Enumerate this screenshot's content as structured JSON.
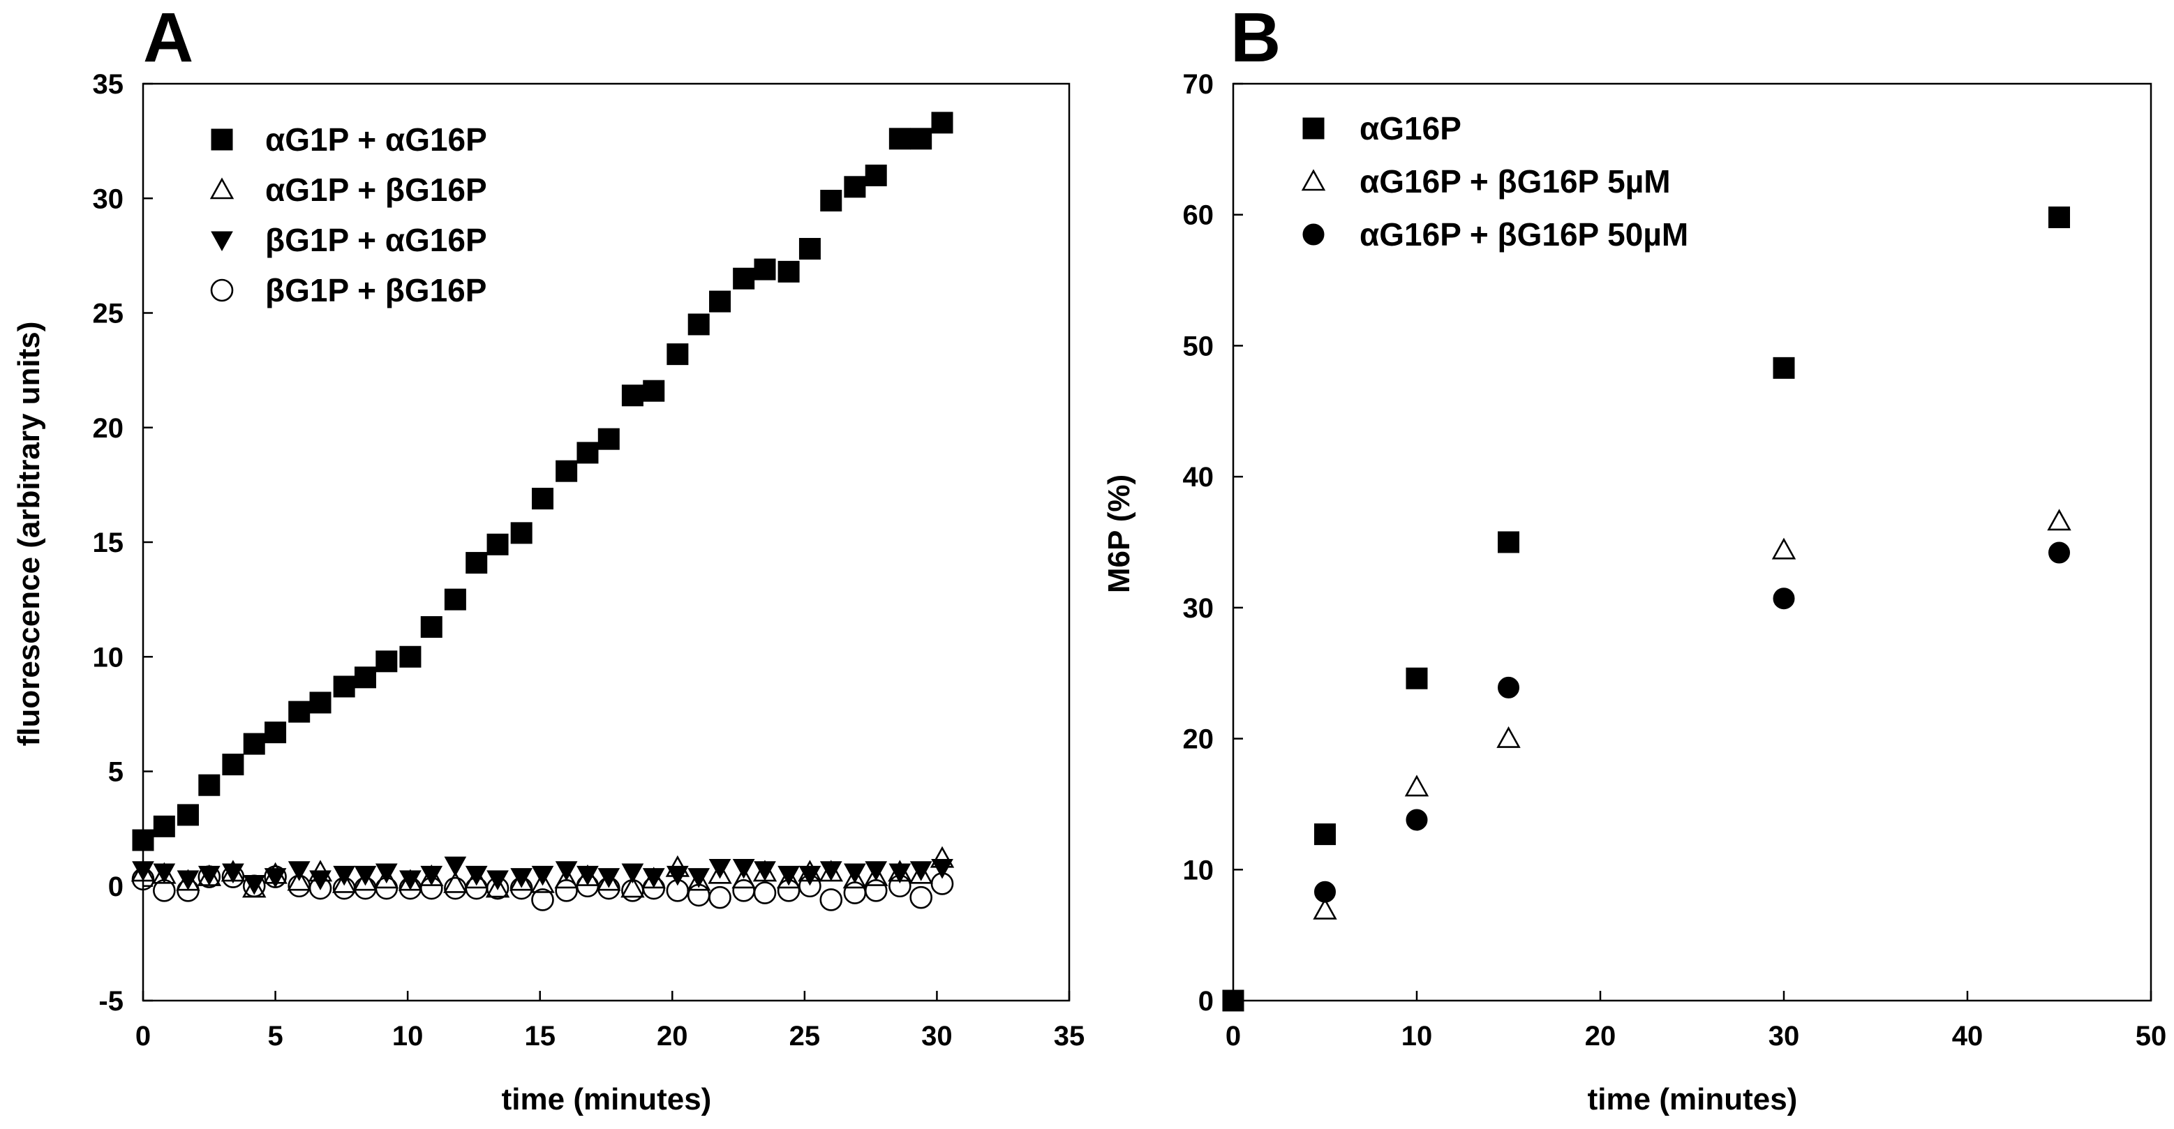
{
  "colors": {
    "ink": "#000000",
    "background": "#ffffff"
  },
  "chart_data": [
    {
      "panel": "A",
      "type": "scatter",
      "xlabel": "time (minutes)",
      "ylabel": "fluorescence (arbitrary units)",
      "xlim": [
        0,
        35
      ],
      "ylim": [
        -5,
        35
      ],
      "xticks": [
        0,
        5,
        10,
        15,
        20,
        25,
        30,
        35
      ],
      "yticks": [
        -5,
        0,
        5,
        10,
        15,
        20,
        25,
        30,
        35
      ],
      "grid": false,
      "legend_position": "top-left",
      "series": [
        {
          "name": "αG1P + αG16P",
          "marker": "square-filled",
          "x": [
            0,
            0.8,
            1.7,
            2.5,
            3.4,
            4.2,
            5.0,
            5.9,
            6.7,
            7.6,
            8.4,
            9.2,
            10.1,
            10.9,
            11.8,
            12.6,
            13.4,
            14.3,
            15.1,
            16.0,
            16.8,
            17.6,
            18.5,
            19.3,
            20.2,
            21.0,
            21.8,
            22.7,
            23.5,
            24.4,
            25.2,
            26.0,
            26.9,
            27.7,
            28.6,
            29.4,
            30.2
          ],
          "y": [
            2.0,
            2.6,
            3.1,
            4.4,
            5.3,
            6.2,
            6.7,
            7.6,
            8.0,
            8.7,
            9.1,
            9.8,
            10.0,
            11.3,
            12.5,
            14.1,
            14.9,
            15.4,
            16.9,
            18.1,
            18.9,
            19.5,
            21.4,
            21.6,
            23.2,
            24.5,
            25.5,
            26.5,
            26.9,
            26.8,
            27.8,
            29.9,
            30.5,
            31.0,
            32.6,
            32.6,
            33.3
          ]
        },
        {
          "name": "αG1P + βG16P",
          "marker": "triangle-up-open",
          "x": [
            0,
            0.8,
            1.7,
            2.5,
            3.4,
            4.2,
            5.0,
            5.9,
            6.7,
            7.6,
            8.4,
            9.2,
            10.1,
            10.9,
            11.8,
            12.6,
            13.4,
            14.3,
            15.1,
            16.0,
            16.8,
            17.6,
            18.5,
            19.3,
            20.2,
            21.0,
            21.8,
            22.7,
            23.5,
            24.4,
            25.2,
            26.0,
            26.9,
            27.7,
            28.6,
            29.4,
            30.2
          ],
          "y": [
            0.6,
            0.5,
            0.2,
            0.4,
            0.6,
            -0.1,
            0.5,
            0.2,
            0.6,
            0.1,
            0.2,
            0.3,
            0.2,
            0.4,
            0.1,
            0.3,
            -0.1,
            0.2,
            0.1,
            0.3,
            0.4,
            0.2,
            -0.1,
            0.3,
            0.8,
            0.2,
            0.5,
            0.3,
            0.6,
            0.3,
            0.6,
            0.6,
            0.3,
            0.4,
            0.6,
            0.5,
            1.2
          ]
        },
        {
          "name": "βG1P + αG16P",
          "marker": "triangle-down-filled",
          "x": [
            0,
            0.8,
            1.7,
            2.5,
            3.4,
            4.2,
            5.0,
            5.9,
            6.7,
            7.6,
            8.4,
            9.2,
            10.1,
            10.9,
            11.8,
            12.6,
            13.4,
            14.3,
            15.1,
            16.0,
            16.8,
            17.6,
            18.5,
            19.3,
            20.2,
            21.0,
            21.8,
            22.7,
            23.5,
            24.4,
            25.2,
            26.0,
            26.9,
            27.7,
            28.6,
            29.4,
            30.2
          ],
          "y": [
            0.7,
            0.6,
            0.3,
            0.5,
            0.6,
            0.1,
            0.4,
            0.7,
            0.3,
            0.5,
            0.5,
            0.6,
            0.3,
            0.5,
            0.9,
            0.5,
            0.3,
            0.4,
            0.5,
            0.7,
            0.5,
            0.4,
            0.6,
            0.4,
            0.5,
            0.4,
            0.8,
            0.8,
            0.7,
            0.5,
            0.5,
            0.7,
            0.6,
            0.7,
            0.6,
            0.7,
            0.8
          ]
        },
        {
          "name": "βG1P + βG16P",
          "marker": "circle-open",
          "x": [
            0,
            0.8,
            1.7,
            2.5,
            3.4,
            4.2,
            5.0,
            5.9,
            6.7,
            7.6,
            8.4,
            9.2,
            10.1,
            10.9,
            11.8,
            12.6,
            13.4,
            14.3,
            15.1,
            16.0,
            16.8,
            17.6,
            18.5,
            19.3,
            20.2,
            21.0,
            21.8,
            22.7,
            23.5,
            24.4,
            25.2,
            26.0,
            26.9,
            27.7,
            28.6,
            29.4,
            30.2
          ],
          "y": [
            0.3,
            -0.2,
            -0.2,
            0.4,
            0.4,
            0.0,
            0.4,
            0.0,
            -0.1,
            -0.1,
            -0.1,
            -0.1,
            -0.1,
            -0.1,
            -0.1,
            -0.1,
            -0.1,
            -0.1,
            -0.6,
            -0.2,
            0.0,
            -0.1,
            -0.2,
            -0.1,
            -0.2,
            -0.4,
            -0.5,
            -0.2,
            -0.3,
            -0.2,
            0.0,
            -0.6,
            -0.3,
            -0.2,
            0.0,
            -0.5,
            0.1
          ]
        }
      ]
    },
    {
      "panel": "B",
      "type": "scatter",
      "xlabel": "time (minutes)",
      "ylabel": "M6P (%)",
      "xlim": [
        0,
        50
      ],
      "ylim": [
        0,
        70
      ],
      "xticks": [
        0,
        10,
        20,
        30,
        40,
        50
      ],
      "yticks": [
        0,
        10,
        20,
        30,
        40,
        50,
        60,
        70
      ],
      "grid": false,
      "legend_position": "top-left",
      "series": [
        {
          "name": "αG16P",
          "marker": "square-filled",
          "x": [
            0,
            5,
            10,
            15,
            30,
            45
          ],
          "y": [
            0,
            12.7,
            24.6,
            35.0,
            48.3,
            59.8
          ]
        },
        {
          "name": "αG16P + βG16P 5µM",
          "marker": "triangle-up-open",
          "x": [
            5,
            10,
            15,
            30,
            45
          ],
          "y": [
            6.9,
            16.3,
            20.0,
            34.4,
            36.6
          ]
        },
        {
          "name": "αG16P + βG16P 50µM",
          "marker": "circle-filled",
          "x": [
            5,
            10,
            15,
            30,
            45
          ],
          "y": [
            8.3,
            13.8,
            23.9,
            30.7,
            34.2
          ]
        }
      ]
    }
  ]
}
